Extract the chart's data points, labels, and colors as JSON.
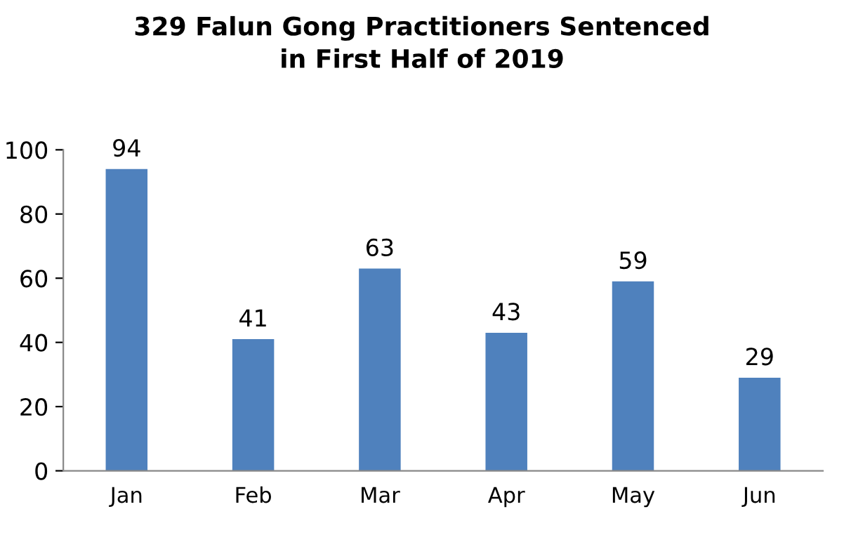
{
  "chart_data": {
    "type": "bar",
    "title": "329 Falun Gong Practitioners Sentenced\nin First Half of 2019",
    "categories": [
      "Jan",
      "Feb",
      "Mar",
      "Apr",
      "May",
      "Jun"
    ],
    "values": [
      94,
      41,
      63,
      43,
      59,
      29
    ],
    "color": "#4f81bd",
    "ylim": [
      0,
      100
    ],
    "yticks": [
      0,
      20,
      40,
      60,
      80,
      100
    ],
    "data_labels": true,
    "grid": false,
    "legend": false
  }
}
